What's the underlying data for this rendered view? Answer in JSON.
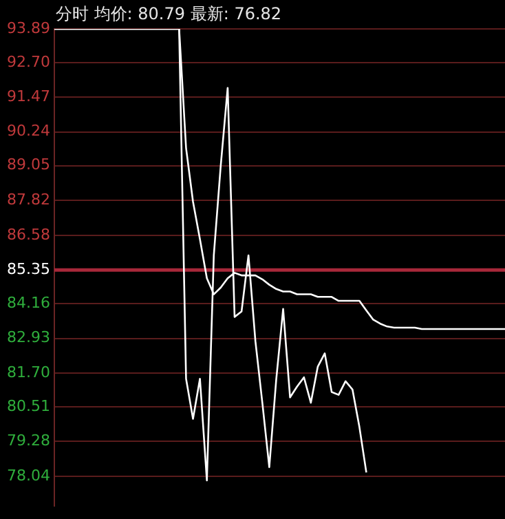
{
  "chart_data": {
    "type": "line",
    "title": "分时 均价: 80.79 最新: 76.82",
    "categories": [
      null,
      null,
      null,
      null,
      null,
      null,
      null,
      null,
      null,
      null,
      null,
      null,
      null,
      null,
      null,
      null,
      null,
      null,
      null,
      null,
      null,
      null,
      null,
      null,
      null,
      null,
      null,
      null,
      null,
      null,
      null,
      null,
      null,
      null,
      null,
      null,
      null,
      null,
      null,
      null,
      null,
      null,
      null,
      null,
      null,
      null,
      null,
      null,
      null,
      null,
      null,
      null,
      null,
      null,
      null,
      null,
      null,
      null,
      null,
      null,
      null,
      null,
      null,
      null,
      null,
      null
    ],
    "series": [
      {
        "color": "#ffffff",
        "values": [
          93.89,
          93.89,
          93.89,
          93.89,
          93.89,
          93.89,
          93.89,
          93.89,
          93.89,
          93.89,
          93.89,
          93.89,
          93.89,
          93.89,
          93.89,
          93.89,
          93.89,
          93.89,
          93.89,
          81.5,
          80.08,
          81.5,
          77.9,
          85.87,
          89.05,
          91.8,
          83.69,
          83.88,
          85.87,
          82.83,
          80.65,
          78.37,
          81.46,
          83.97,
          80.84,
          81.22,
          81.55,
          80.65,
          81.93,
          82.4,
          81.03,
          80.93,
          81.41,
          81.12,
          79.79,
          78.18,
          null,
          null,
          null,
          null,
          null,
          null,
          null,
          null,
          null,
          null,
          null,
          null,
          null,
          null,
          null,
          null,
          null,
          null,
          null,
          null
        ]
      },
      {
        "color": "#ffffff",
        "values": [
          93.89,
          93.89,
          93.89,
          93.89,
          93.89,
          93.89,
          93.89,
          93.89,
          93.89,
          93.89,
          93.89,
          93.89,
          93.89,
          93.89,
          93.89,
          93.89,
          93.89,
          93.89,
          93.89,
          89.67,
          87.77,
          86.44,
          85.06,
          84.49,
          84.73,
          85.06,
          85.25,
          85.16,
          85.16,
          85.16,
          85.02,
          84.83,
          84.68,
          84.59,
          84.59,
          84.49,
          84.49,
          84.49,
          84.4,
          84.4,
          84.4,
          84.26,
          84.26,
          84.26,
          84.26,
          83.92,
          83.59,
          83.45,
          83.35,
          83.31,
          83.31,
          83.31,
          83.31,
          83.26,
          83.26,
          83.26,
          83.26,
          83.26,
          83.26,
          83.26,
          83.26,
          83.26,
          83.26,
          83.26,
          83.26,
          83.26
        ]
      }
    ],
    "ylim": [
      77.0,
      93.89
    ],
    "yticks": [
      78.04,
      79.28,
      80.51,
      {
        "value": 81.7,
        "label": "81.70"
      },
      82.93,
      84.16,
      85.35,
      86.58,
      87.82,
      89.05,
      90.24,
      91.47,
      {
        "value": 92.7,
        "label": "92.70"
      },
      93.89
    ],
    "ref_lines": [
      {
        "axis": "y",
        "value": 85.35,
        "color": "#a8283a"
      }
    ],
    "grid": "y",
    "legend": false,
    "marker": "none",
    "line_style": "solid"
  }
}
